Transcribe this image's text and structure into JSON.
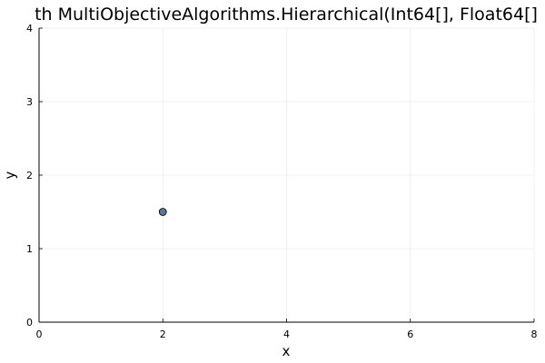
{
  "chart_data": {
    "type": "scatter",
    "title": "th MultiObjectiveAlgorithms.Hierarchical(Int64[], Float64[]",
    "xlabel": "x",
    "ylabel": "y",
    "xlim": [
      0,
      8
    ],
    "ylim": [
      0,
      4
    ],
    "xticks": [
      0,
      2,
      4,
      6,
      8
    ],
    "yticks": [
      0,
      1,
      2,
      3,
      4
    ],
    "grid": true,
    "legend": "none",
    "series": [
      {
        "points": [
          {
            "x": 2,
            "y": 1.5
          }
        ],
        "color": "#5b7594"
      }
    ]
  }
}
